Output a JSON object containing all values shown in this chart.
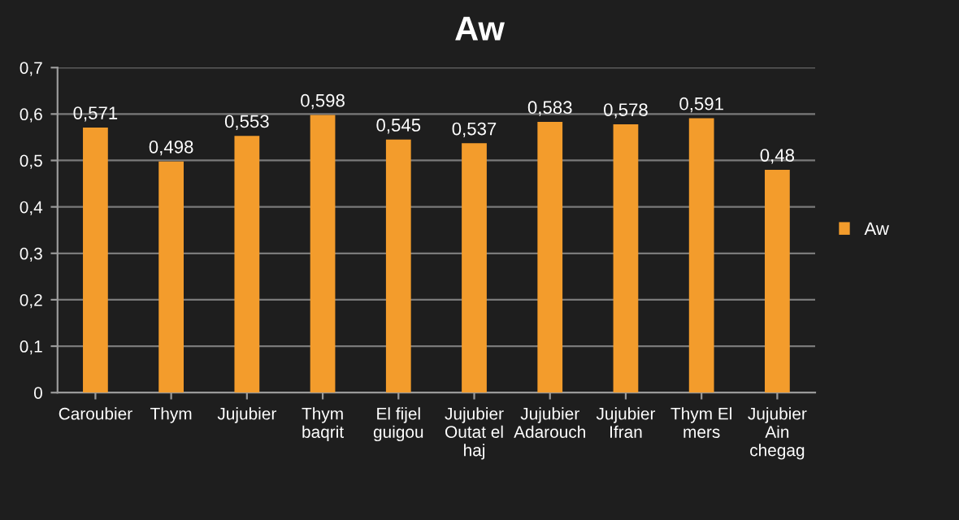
{
  "chart_data": {
    "type": "bar",
    "title": "Aw",
    "categories": [
      "Caroubier",
      "Thym",
      "Jujubier",
      "Thym\nbaqrit",
      "El fijel\nguigou",
      "Jujubier\nOutat el\nhaj",
      "Jujubier\nAdarouch",
      "Jujubier\nIfran",
      "Thym El\nmers",
      "Jujubier\nAin\nchegag"
    ],
    "series": [
      {
        "name": "Aw",
        "color": "#f39c2c",
        "values": [
          0.571,
          0.498,
          0.553,
          0.598,
          0.545,
          0.537,
          0.583,
          0.578,
          0.591,
          0.48
        ],
        "value_labels": [
          "0,571",
          "0,498",
          "0,553",
          "0,598",
          "0,545",
          "0,537",
          "0,583",
          "0,578",
          "0,591",
          "0,48"
        ]
      }
    ],
    "ylim": [
      0,
      0.7
    ],
    "yticks": [
      0,
      {
        "value": 0.1,
        "label": "0,1"
      },
      {
        "value": 0.2,
        "label": "0,2"
      },
      {
        "value": 0.3,
        "label": "0,3"
      },
      {
        "value": 0.4,
        "label": "0,4"
      },
      {
        "value": 0.5,
        "label": "0,5"
      },
      {
        "value": 0.6,
        "label": "0,6"
      },
      {
        "value": 0.7,
        "label": "0,7"
      }
    ],
    "grid": "y",
    "legend": "right"
  }
}
